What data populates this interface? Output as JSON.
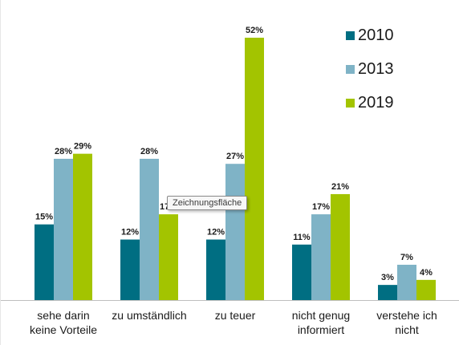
{
  "chart_data": {
    "type": "bar",
    "categories": [
      [
        "sehe darin",
        "keine Vorteile"
      ],
      [
        "zu umständlich"
      ],
      [
        "zu teuer"
      ],
      [
        "nicht genug",
        "informiert"
      ],
      [
        "verstehe ich",
        "nicht"
      ]
    ],
    "series": [
      {
        "name": "2010",
        "color": "#006e82",
        "values": [
          15,
          12,
          12,
          11,
          3
        ],
        "labels": [
          "15%",
          "12%",
          "12%",
          "11%",
          "3%"
        ]
      },
      {
        "name": "2013",
        "color": "#7fb3c6",
        "values": [
          28,
          28,
          27,
          17,
          7
        ],
        "labels": [
          "28%",
          "28%",
          "27%",
          "17%",
          "7%"
        ]
      },
      {
        "name": "2019",
        "color": "#a3c400",
        "values": [
          29,
          17,
          52,
          21,
          4
        ],
        "labels": [
          "29%",
          "17%",
          "52%",
          "21%",
          "4%"
        ]
      }
    ],
    "ylim": [
      0,
      52
    ],
    "grid": false,
    "legend": "top-right",
    "xlabel": "",
    "ylabel": "",
    "title": ""
  },
  "tooltip": {
    "text": "Zeichnungsfläche"
  }
}
